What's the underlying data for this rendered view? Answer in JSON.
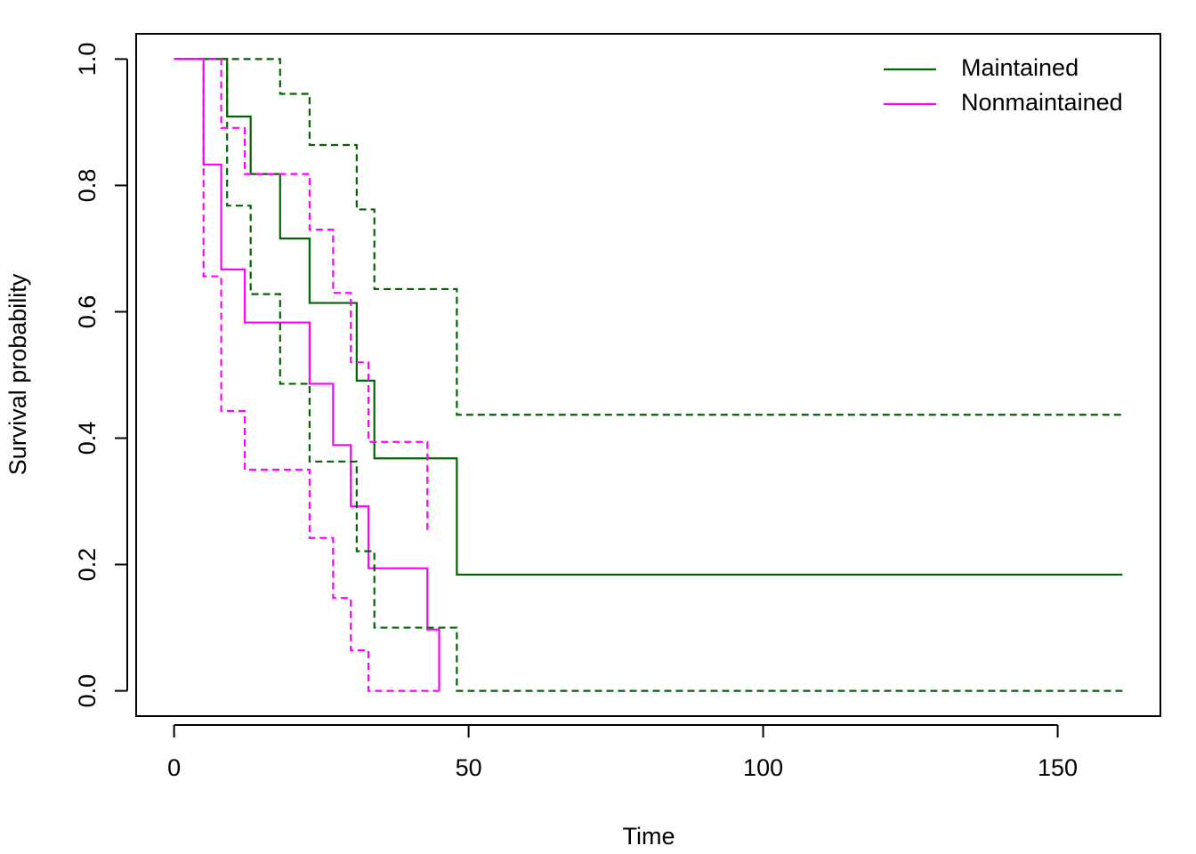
{
  "chart_data": {
    "type": "step",
    "x_label": "Time",
    "y_label": "Survival probability",
    "xlim": [
      -6.44,
      167.44
    ],
    "ylim": [
      -0.04,
      1.04
    ],
    "xticks": [
      0,
      50,
      100,
      150
    ],
    "yticks": [
      {
        "value": 0,
        "label": "0.0"
      },
      {
        "value": 0.2,
        "label": "0.2"
      },
      {
        "value": 0.4,
        "label": "0.4"
      },
      {
        "value": 0.6,
        "label": "0.6"
      },
      {
        "value": 0.8,
        "label": "0.8"
      },
      {
        "value": 1,
        "label": "1.0"
      }
    ],
    "legend": "top-right",
    "series": [
      {
        "name": "Maintained",
        "color": "#006400",
        "line_style": "solid",
        "x": [
          0,
          9,
          13,
          18,
          23,
          31,
          34,
          48,
          161
        ],
        "values": [
          1,
          0.909,
          0.818,
          0.716,
          0.614,
          0.491,
          0.368,
          0.184,
          0.184
        ]
      },
      {
        "name": "Nonmaintained",
        "color": "#ff00ff",
        "line_style": "solid",
        "x": [
          0,
          5,
          8,
          12,
          23,
          27,
          30,
          33,
          43,
          45
        ],
        "values": [
          1,
          0.833,
          0.667,
          0.583,
          0.486,
          0.389,
          0.292,
          0.194,
          0.097,
          0
        ]
      },
      {
        "color": "#006400",
        "line_style": "dashed",
        "x": [
          0,
          18,
          23,
          31,
          34,
          48,
          161
        ],
        "values": [
          1,
          0.945,
          0.864,
          0.762,
          0.636,
          0.437,
          0.437
        ]
      },
      {
        "color": "#006400",
        "line_style": "dashed",
        "x": [
          0,
          9,
          13,
          18,
          23,
          31,
          34,
          48,
          161
        ],
        "values": [
          1,
          0.768,
          0.628,
          0.486,
          0.363,
          0.221,
          0.1,
          0,
          0
        ]
      },
      {
        "color": "#ff00ff",
        "line_style": "dashed",
        "x": [
          0,
          8,
          12,
          23,
          27,
          30,
          33,
          43
        ],
        "values": [
          1,
          0.891,
          0.818,
          0.73,
          0.63,
          0.52,
          0.394,
          0.249
        ]
      },
      {
        "color": "#ff00ff",
        "line_style": "dashed",
        "x": [
          0,
          5,
          8,
          12,
          23,
          27,
          30,
          33,
          45
        ],
        "values": [
          1,
          0.656,
          0.443,
          0.35,
          0.242,
          0.147,
          0.064,
          0,
          0
        ]
      }
    ]
  }
}
